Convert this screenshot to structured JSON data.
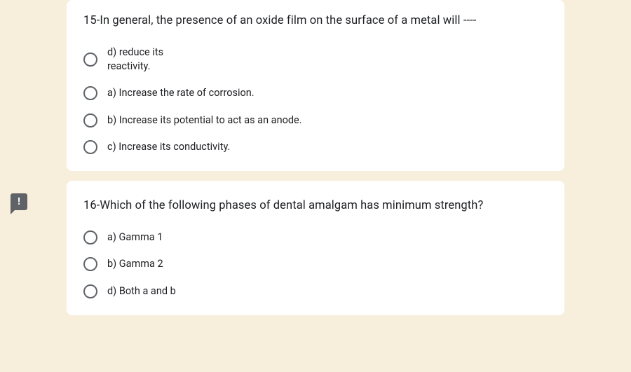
{
  "background_color": "#f7efdc",
  "card_background": "#ffffff",
  "text_color": "#202124",
  "radio_border": "#5f6368",
  "feedback_icon_bg": "#5f6368",
  "feedback_icon_text": "!",
  "questions": [
    {
      "title": "15-In general, the presence of an oxide film on the surface of a metal will ----",
      "options": [
        {
          "label": "d) reduce its reactivity."
        },
        {
          "label": "a) Increase the rate of corrosion."
        },
        {
          "label": "b) Increase its potential to act as an anode."
        },
        {
          "label": "c) Increase its conductivity."
        }
      ]
    },
    {
      "title": "16-Which of the following phases of dental amalgam has minimum strength?",
      "options": [
        {
          "label": "a) Gamma 1"
        },
        {
          "label": "b) Gamma 2"
        },
        {
          "label": "d) Both a and b"
        }
      ]
    }
  ]
}
